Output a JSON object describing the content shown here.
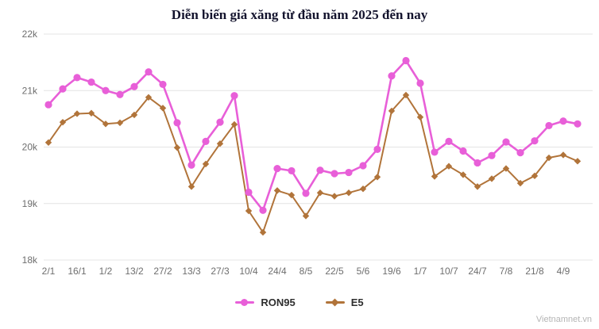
{
  "title": "Diễn biến giá xăng từ đầu năm 2025 đến nay",
  "watermark": "Vietnamnet.vn",
  "colors": {
    "ron95": "#e85fd8",
    "e5": "#b1743a",
    "gridline": "#e4e4e4",
    "tick_label": "#6e6e6e",
    "title": "#14142e",
    "legend_text": "#2e2e2e",
    "background": "#ffffff",
    "watermark": "#b5b5b5"
  },
  "chart_data": {
    "type": "line",
    "title": "Diễn biến giá xăng từ đầu năm 2025 đến nay",
    "x_labels": [
      "2/1",
      "16/1",
      "1/2",
      "13/2",
      "27/2",
      "13/3",
      "27/3",
      "10/4",
      "24/4",
      "8/5",
      "22/5",
      "5/6",
      "19/6",
      "1/7",
      "10/7",
      "24/7",
      "7/8",
      "21/8",
      "4/9"
    ],
    "label_every": 2,
    "points_count": 38,
    "unit": "VND/litre",
    "ylim": [
      18000,
      22000
    ],
    "yticks": [
      22000,
      21000,
      20000,
      19000,
      18000
    ],
    "ytick_labels": [
      "22k",
      "21k",
      "20k",
      "19k",
      "18k"
    ],
    "grid": "horizontal",
    "legend_position": "bottom",
    "series": [
      {
        "name": "RON95",
        "color": "#e85fd8",
        "marker": "circle",
        "values": [
          20750,
          21030,
          21230,
          21150,
          21000,
          20930,
          21070,
          21330,
          21110,
          20430,
          19680,
          20100,
          20440,
          20910,
          19200,
          18880,
          19620,
          19580,
          19180,
          19590,
          19530,
          19550,
          19670,
          19960,
          21260,
          21530,
          21130,
          19910,
          20100,
          19930,
          19720,
          19850,
          20090,
          19900,
          20110,
          20380,
          20460,
          20410
        ]
      },
      {
        "name": "E5",
        "color": "#b1743a",
        "marker": "diamond",
        "values": [
          20080,
          20440,
          20590,
          20600,
          20410,
          20430,
          20570,
          20880,
          20690,
          19990,
          19300,
          19700,
          20060,
          20400,
          18870,
          18490,
          19230,
          19150,
          18780,
          19190,
          19130,
          19190,
          19260,
          19470,
          20640,
          20920,
          20530,
          19480,
          19660,
          19510,
          19300,
          19440,
          19620,
          19360,
          19490,
          19810,
          19860,
          19750
        ]
      }
    ]
  }
}
